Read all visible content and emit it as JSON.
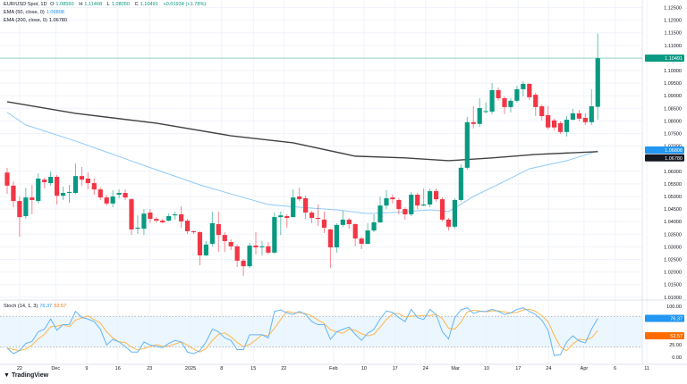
{
  "header": {
    "symbol": "EUR/USD Spot, 1D",
    "open_label": "O",
    "open": "1.08560",
    "high_label": "H",
    "high": "1.11468",
    "low_label": "L",
    "low": "1.08050",
    "close_label": "C",
    "close": "1.10491",
    "change": "+0.01934 (+1.78%)",
    "ema50_label": "EMA (50, close, 0)",
    "ema50_value": "1.06808",
    "ema200_label": "EMA (200, close, 0)",
    "ema200_value": "1.06780",
    "stoch_label": "Stoch (14, 1, 3)",
    "stoch_k_value": "76.37",
    "stoch_d_value": "52.57"
  },
  "branding": {
    "logo_text": "TradingView"
  },
  "colors": {
    "up": "#089981",
    "down": "#f23645",
    "ema50": "#90caf9",
    "ema200": "#424242",
    "stoch_k": "#64b5f6",
    "stoch_d": "#ffb74d",
    "last_price": "#089981",
    "ema50_badge": "#2196f3",
    "ema200_badge": "#131722",
    "stoch_k_badge": "#2196f3",
    "stoch_d_badge": "#ff6d00",
    "stoch_band": "#e3f2fd"
  },
  "chart_data": [
    {
      "type": "candlestick",
      "title": "EUR/USD Spot, 1D",
      "ylim": [
        1.008,
        1.127
      ],
      "y_ticks": [
        "1.12500",
        "1.12000",
        "1.11500",
        "1.11000",
        "1.10000",
        "1.09500",
        "1.09000",
        "1.08500",
        "1.08000",
        "1.07500",
        "1.07000",
        "1.06000",
        "1.05500",
        "1.05000",
        "1.04500",
        "1.04000",
        "1.03500",
        "1.03000",
        "1.02500",
        "1.02000",
        "1.01500",
        "1.01000"
      ],
      "x_labels": [
        {
          "label": "22",
          "index": 2
        },
        {
          "label": "Dec",
          "index": 7.8
        },
        {
          "label": "9",
          "index": 12.8
        },
        {
          "label": "16",
          "index": 17.8
        },
        {
          "label": "23",
          "index": 22.9
        },
        {
          "label": "2025",
          "index": 29.5
        },
        {
          "label": "8",
          "index": 34.5
        },
        {
          "label": "15",
          "index": 39.6
        },
        {
          "label": "22",
          "index": 44.5
        },
        {
          "label": "Feb",
          "index": 52.5
        },
        {
          "label": "10",
          "index": 57.4
        },
        {
          "label": "17",
          "index": 62.4
        },
        {
          "label": "24",
          "index": 67.3
        },
        {
          "label": "Mar",
          "index": 72.1
        },
        {
          "label": "10",
          "index": 77.1
        },
        {
          "label": "17",
          "index": 82.2
        },
        {
          "label": "24",
          "index": 87.1
        },
        {
          "label": "Apr",
          "index": 92.8
        },
        {
          "label": "6",
          "index": 97.8
        },
        {
          "label": "11",
          "index": 102.9
        }
      ],
      "ohlc": [
        [
          1.0595,
          1.0614,
          1.051,
          1.0543
        ],
        [
          1.0543,
          1.056,
          1.0457,
          1.0482
        ],
        [
          1.0482,
          1.05,
          1.034,
          1.0418
        ],
        [
          1.0422,
          1.0535,
          1.0411,
          1.0496
        ],
        [
          1.0496,
          1.0546,
          1.0429,
          1.0486
        ],
        [
          1.0482,
          1.0592,
          1.0472,
          1.0571
        ],
        [
          1.0567,
          1.0574,
          1.0532,
          1.0557
        ],
        [
          1.0553,
          1.0599,
          1.0543,
          1.0578
        ],
        [
          1.0578,
          1.0585,
          1.0468,
          1.0503
        ],
        [
          1.0503,
          1.0539,
          1.0486,
          1.0514
        ],
        [
          1.0514,
          1.0546,
          1.0475,
          1.0518
        ],
        [
          1.0514,
          1.0631,
          1.051,
          1.0581
        ],
        [
          1.0581,
          1.0617,
          1.0543,
          1.0567
        ],
        [
          1.0571,
          1.0595,
          1.0528,
          1.0553
        ],
        [
          1.0553,
          1.0571,
          1.0507,
          1.0528
        ],
        [
          1.0528,
          1.0535,
          1.0486,
          1.0496
        ],
        [
          1.0496,
          1.0507,
          1.0464,
          1.0472
        ],
        [
          1.0472,
          1.0525,
          1.0457,
          1.05
        ],
        [
          1.0507,
          1.0528,
          1.0493,
          1.0514
        ],
        [
          1.0514,
          1.0528,
          1.0486,
          1.0496
        ],
        [
          1.0489,
          1.0493,
          1.0347,
          1.0369
        ],
        [
          1.0372,
          1.0425,
          1.0351,
          1.0376
        ],
        [
          1.0372,
          1.045,
          1.0347,
          1.0432
        ],
        [
          1.0436,
          1.045,
          1.0394,
          1.0411
        ],
        [
          1.0411,
          1.0418,
          1.0397,
          1.0404
        ],
        [
          1.0404,
          1.0411,
          1.0394,
          1.0397
        ],
        [
          1.0404,
          1.0432,
          1.0401,
          1.0422
        ],
        [
          1.0425,
          1.044,
          1.0408,
          1.0429
        ],
        [
          1.0429,
          1.0461,
          1.0376,
          1.0401
        ],
        [
          1.0404,
          1.0411,
          1.0351,
          1.0362
        ],
        [
          1.0362,
          1.0365,
          1.0351,
          1.0358
        ],
        [
          1.0358,
          1.0362,
          1.0227,
          1.0266
        ],
        [
          1.0266,
          1.0323,
          1.0263,
          1.0309
        ],
        [
          1.0312,
          1.044,
          1.0302,
          1.0394
        ],
        [
          1.039,
          1.044,
          1.028,
          1.0347
        ],
        [
          1.0347,
          1.0358,
          1.028,
          1.0323
        ],
        [
          1.0319,
          1.033,
          1.0287,
          1.0302
        ],
        [
          1.0302,
          1.0309,
          1.022,
          1.0245
        ],
        [
          1.0245,
          1.0252,
          1.0184,
          1.0223
        ],
        [
          1.0223,
          1.0316,
          1.0216,
          1.0305
        ],
        [
          1.0305,
          1.0358,
          1.027,
          1.0298
        ],
        [
          1.0298,
          1.0323,
          1.0266,
          1.0302
        ],
        [
          1.0302,
          1.0319,
          1.027,
          1.0277
        ],
        [
          1.0277,
          1.0436,
          1.0273,
          1.0418
        ],
        [
          1.0418,
          1.044,
          1.0347,
          1.0425
        ],
        [
          1.0422,
          1.0429,
          1.0376,
          1.0415
        ],
        [
          1.0418,
          1.0528,
          1.0418,
          1.0496
        ],
        [
          1.05,
          1.0535,
          1.0482,
          1.0489
        ],
        [
          1.0493,
          1.0503,
          1.0411,
          1.0436
        ],
        [
          1.0436,
          1.0443,
          1.0394,
          1.0415
        ],
        [
          1.0415,
          1.0468,
          1.0383,
          1.0411
        ],
        [
          1.0408,
          1.044,
          1.0355,
          1.0376
        ],
        [
          1.0369,
          1.0372,
          1.0216,
          1.0298
        ],
        [
          1.0298,
          1.0394,
          1.0277,
          1.0387
        ],
        [
          1.0387,
          1.0443,
          1.038,
          1.0408
        ],
        [
          1.0408,
          1.0415,
          1.0372,
          1.039
        ],
        [
          1.039,
          1.0394,
          1.0302,
          1.0333
        ],
        [
          1.0333,
          1.034,
          1.0291,
          1.0312
        ],
        [
          1.0312,
          1.0394,
          1.0309,
          1.0365
        ],
        [
          1.0365,
          1.0429,
          1.0358,
          1.0397
        ],
        [
          1.0397,
          1.05,
          1.0394,
          1.0464
        ],
        [
          1.0464,
          1.0525,
          1.045,
          1.0493
        ],
        [
          1.0496,
          1.0507,
          1.0472,
          1.0489
        ],
        [
          1.0486,
          1.0493,
          1.0429,
          1.045
        ],
        [
          1.045,
          1.0457,
          1.0408,
          1.0429
        ],
        [
          1.0429,
          1.0518,
          1.0422,
          1.0507
        ],
        [
          1.0507,
          1.0514,
          1.045,
          1.0464
        ],
        [
          1.0464,
          1.0532,
          1.0461,
          1.0468
        ],
        [
          1.0468,
          1.0532,
          1.0457,
          1.0521
        ],
        [
          1.0521,
          1.0532,
          1.0479,
          1.0489
        ],
        [
          1.0489,
          1.0496,
          1.0401,
          1.0408
        ],
        [
          1.0408,
          1.0415,
          1.0365,
          1.038
        ],
        [
          1.038,
          1.0493,
          1.0372,
          1.0486
        ],
        [
          1.0486,
          1.0628,
          1.0479,
          1.0614
        ],
        [
          1.0614,
          1.0816,
          1.0606,
          1.0795
        ],
        [
          1.0795,
          1.0859,
          1.077,
          1.0788
        ],
        [
          1.0788,
          1.089,
          1.0777,
          1.0851
        ],
        [
          1.0837,
          1.0873,
          1.083,
          1.0839
        ],
        [
          1.0837,
          1.095,
          1.0827,
          1.0922
        ],
        [
          1.0922,
          1.0933,
          1.088,
          1.089
        ],
        [
          1.089,
          1.0897,
          1.0827,
          1.0855
        ],
        [
          1.0855,
          1.089,
          1.0834,
          1.088
        ],
        [
          1.088,
          1.094,
          1.0873,
          1.0926
        ],
        [
          1.0926,
          1.0958,
          1.0897,
          1.0947
        ],
        [
          1.0947,
          1.095,
          1.0883,
          1.0894
        ],
        [
          1.0904,
          1.0912,
          1.0819,
          1.0855
        ],
        [
          1.0858,
          1.0865,
          1.0802,
          1.0819
        ],
        [
          1.0823,
          1.0859,
          1.0766,
          1.0774
        ],
        [
          1.0802,
          1.0809,
          1.0763,
          1.0774
        ],
        [
          1.0791,
          1.0798,
          1.0748,
          1.0756
        ],
        [
          1.0756,
          1.0819,
          1.0738,
          1.0805
        ],
        [
          1.0805,
          1.0848,
          1.0802,
          1.083
        ],
        [
          1.083,
          1.0844,
          1.0798,
          1.0809
        ],
        [
          1.0812,
          1.083,
          1.0784,
          1.0795
        ],
        [
          1.0795,
          1.0926,
          1.0784,
          1.0858
        ],
        [
          1.0856,
          1.1147,
          1.0805,
          1.1049
        ]
      ],
      "last_price": 1.10491,
      "series": [
        {
          "name": "EMA (50, close, 0)",
          "points": [
            [
              0,
              1.0834
            ],
            [
              3,
              1.0784
            ],
            [
              11,
              1.072
            ],
            [
              24,
              1.0606
            ],
            [
              31,
              1.0546
            ],
            [
              36,
              1.051
            ],
            [
              42,
              1.0468
            ],
            [
              45,
              1.0461
            ],
            [
              53,
              1.0447
            ],
            [
              58,
              1.0432
            ],
            [
              62,
              1.0436
            ],
            [
              68,
              1.0447
            ],
            [
              71,
              1.044
            ],
            [
              72,
              1.0454
            ],
            [
              75,
              1.05
            ],
            [
              80,
              1.056
            ],
            [
              84,
              1.061
            ],
            [
              90,
              1.0642
            ],
            [
              95,
              1.06808
            ]
          ]
        },
        {
          "name": "EMA (200, close, 0)",
          "points": [
            [
              0,
              1.0876
            ],
            [
              11,
              1.083
            ],
            [
              24,
              1.0791
            ],
            [
              36,
              1.0741
            ],
            [
              46,
              1.0713
            ],
            [
              56,
              1.066
            ],
            [
              64,
              1.0653
            ],
            [
              71,
              1.0642
            ],
            [
              78,
              1.0653
            ],
            [
              85,
              1.0667
            ],
            [
              95,
              1.0678
            ]
          ]
        }
      ]
    },
    {
      "type": "line",
      "title": "Stoch (14, 1, 3)",
      "ylim": [
        0,
        100
      ],
      "y_ticks": [
        "100.00",
        "25.00",
        "0.00"
      ],
      "bands": [
        20,
        80
      ],
      "series": [
        {
          "name": "K",
          "values": [
            18,
            7,
            13,
            27,
            31,
            50,
            55,
            75,
            53,
            64,
            64,
            90,
            78,
            75,
            70,
            55,
            24,
            35,
            30,
            21,
            10,
            10,
            30,
            24,
            21,
            19,
            27,
            33,
            30,
            10,
            7,
            13,
            30,
            55,
            50,
            38,
            33,
            15,
            15,
            44,
            44,
            44,
            38,
            90,
            93,
            87,
            84,
            90,
            84,
            70,
            64,
            64,
            35,
            50,
            55,
            59,
            45,
            33,
            47,
            55,
            75,
            91,
            88,
            78,
            70,
            94,
            78,
            74,
            94,
            84,
            50,
            36,
            78,
            93,
            97,
            86,
            90,
            90,
            94,
            90,
            84,
            87,
            94,
            97,
            90,
            84,
            73,
            53,
            3,
            5,
            30,
            42,
            32,
            28,
            55,
            76.37
          ]
        },
        {
          "name": "D",
          "values": [
            18,
            15,
            13,
            16,
            24,
            36,
            45,
            60,
            61,
            64,
            60,
            73,
            77,
            81,
            74,
            67,
            50,
            38,
            30,
            29,
            20,
            14,
            17,
            21,
            25,
            21,
            22,
            26,
            30,
            24,
            16,
            10,
            17,
            33,
            45,
            48,
            40,
            29,
            21,
            25,
            34,
            44,
            42,
            57,
            74,
            90,
            88,
            87,
            86,
            81,
            73,
            66,
            54,
            50,
            47,
            55,
            53,
            46,
            42,
            45,
            59,
            74,
            85,
            86,
            79,
            81,
            81,
            82,
            82,
            84,
            76,
            57,
            55,
            69,
            89,
            92,
            91,
            89,
            91,
            91,
            89,
            87,
            88,
            93,
            94,
            90,
            82,
            70,
            43,
            20,
            13,
            26,
            35,
            34,
            38,
            52.57
          ]
        }
      ]
    }
  ]
}
